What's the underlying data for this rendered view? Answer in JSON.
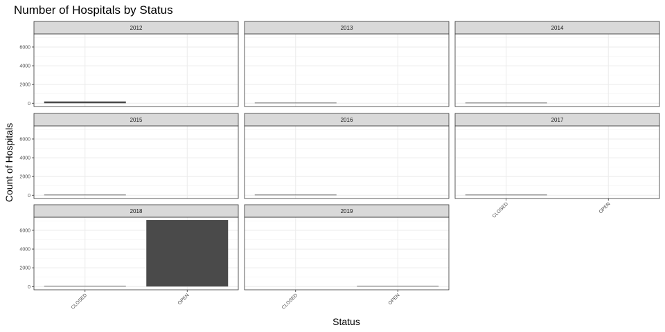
{
  "chart_data": {
    "type": "bar",
    "title": "Number of Hospitals by Status",
    "xlabel": "Status",
    "ylabel": "Count of Hospitals",
    "categories": [
      "CLOSED",
      "OPEN"
    ],
    "y_ticks": [
      0,
      2000,
      4000,
      6000
    ],
    "ylim": [
      -350,
      7400
    ],
    "grid": true,
    "bar_color": "#4a4a4a",
    "facets": [
      {
        "label": "2012",
        "values": [
          190,
          0
        ]
      },
      {
        "label": "2013",
        "values": [
          10,
          0
        ]
      },
      {
        "label": "2014",
        "values": [
          25,
          0
        ]
      },
      {
        "label": "2015",
        "values": [
          5,
          0
        ]
      },
      {
        "label": "2016",
        "values": [
          40,
          0
        ]
      },
      {
        "label": "2017",
        "values": [
          3,
          0
        ]
      },
      {
        "label": "2018",
        "values": [
          20,
          7100
        ]
      },
      {
        "label": "2019",
        "values": [
          0,
          25
        ]
      }
    ]
  }
}
